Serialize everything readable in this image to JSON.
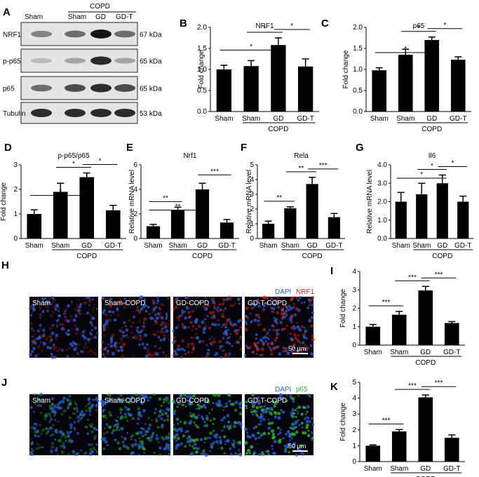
{
  "figure": {
    "panel_letters": [
      "A",
      "B",
      "C",
      "D",
      "E",
      "F",
      "G",
      "H",
      "I",
      "J",
      "K"
    ],
    "western_blot": {
      "header_group": "COPD",
      "lane_labels": [
        "Sham",
        "Sham",
        "GD",
        "GD-T"
      ],
      "rows": [
        {
          "protein": "NRF1",
          "size": "67 kDa",
          "intensities": [
            0.45,
            0.55,
            0.95,
            0.55
          ]
        },
        {
          "protein": "p-p65",
          "size": "65 kDa",
          "intensities": [
            0.2,
            0.3,
            0.85,
            0.3
          ]
        },
        {
          "protein": "p65",
          "size": "65 kDa",
          "intensities": [
            0.55,
            0.7,
            0.85,
            0.7
          ]
        },
        {
          "protein": "Tubulin",
          "size": "53 kDa",
          "intensities": [
            0.85,
            0.85,
            0.85,
            0.85
          ]
        }
      ]
    },
    "microscopy": {
      "H": {
        "stains": [
          "DAPI",
          "NRF1"
        ],
        "stain_colors": [
          "#2a5bd7",
          "#d6271f"
        ],
        "panels": [
          "Sham",
          "Sham-COPD",
          "GD-COPD",
          "GD-T-COPD"
        ],
        "scale_bar": "50 μm"
      },
      "J": {
        "stains": [
          "DAPI",
          "p65"
        ],
        "stain_colors": [
          "#2a5bd7",
          "#2fb52f"
        ],
        "panels": [
          "Sham",
          "Sham-COPD",
          "GD-COPD",
          "GD-T-COPD"
        ],
        "scale_bar": "50 μm"
      }
    }
  },
  "chart_data": [
    {
      "id": "B",
      "type": "bar",
      "title": "NRF1",
      "ylabel": "Fold change",
      "ylim": [
        0,
        2.0
      ],
      "yticks": [
        "0.0",
        "0.5",
        "1.0",
        "1.5",
        "2.0"
      ],
      "categories": [
        "Sham",
        "Sham",
        "GD",
        "GD-T"
      ],
      "group_label": "COPD",
      "values": [
        1.0,
        1.08,
        1.58,
        1.07
      ],
      "errors": [
        0.1,
        0.13,
        0.17,
        0.18
      ],
      "sig": [
        {
          "from": 0,
          "to": 2,
          "label": "*"
        },
        {
          "from": 1,
          "to": 2,
          "label": "*"
        },
        {
          "from": 2,
          "to": 3,
          "label": "*"
        }
      ]
    },
    {
      "id": "C",
      "type": "bar",
      "title": "p65",
      "ylabel": "Fold change",
      "ylim": [
        0,
        2.0
      ],
      "yticks": [
        "0.0",
        "0.5",
        "1.0",
        "1.5",
        "2.0"
      ],
      "categories": [
        "Sham",
        "Sham",
        "GD",
        "GD-T"
      ],
      "group_label": "COPD",
      "values": [
        0.98,
        1.35,
        1.7,
        1.23
      ],
      "errors": [
        0.06,
        0.13,
        0.07,
        0.07
      ],
      "sig": [
        {
          "from": 0,
          "to": 2,
          "label": "*"
        },
        {
          "from": 1,
          "to": 2,
          "label": "*"
        },
        {
          "from": 2,
          "to": 3,
          "label": "*"
        }
      ]
    },
    {
      "id": "D",
      "type": "bar",
      "title": "p-p65/p65",
      "ylabel": "Fold change",
      "ylim": [
        0,
        3
      ],
      "yticks": [
        "0",
        "1",
        "2",
        "3"
      ],
      "categories": [
        "Sham",
        "Sham",
        "GD",
        "GD-T"
      ],
      "group_label": "COPD",
      "values": [
        1.0,
        1.9,
        2.5,
        1.15
      ],
      "errors": [
        0.17,
        0.35,
        0.17,
        0.2
      ],
      "sig": [
        {
          "from": 0,
          "to": 2,
          "label": "*"
        },
        {
          "from": 1,
          "to": 2,
          "label": "*"
        },
        {
          "from": 2,
          "to": 3,
          "label": "*"
        }
      ]
    },
    {
      "id": "E",
      "type": "bar",
      "title": "Nrf1",
      "ylabel": "Relative mRNA level",
      "ylim": [
        0,
        6
      ],
      "yticks": [
        "0",
        "2",
        "4",
        "6"
      ],
      "categories": [
        "Sham",
        "Sham",
        "GD",
        "GD-T"
      ],
      "group_label": "COPD",
      "values": [
        1.0,
        2.3,
        4.0,
        1.3
      ],
      "errors": [
        0.15,
        0.25,
        0.5,
        0.25
      ],
      "sig": [
        {
          "from": 0,
          "to": 1,
          "label": "**"
        },
        {
          "from": 0,
          "to": 2,
          "label": "**"
        },
        {
          "from": 2,
          "to": 3,
          "label": "***"
        }
      ]
    },
    {
      "id": "F",
      "type": "bar",
      "title": "Rela",
      "ylabel": "Relative mRNA level",
      "ylim": [
        0,
        5
      ],
      "yticks": [
        "0",
        "1",
        "2",
        "3",
        "4",
        "5"
      ],
      "categories": [
        "Sham",
        "Sham",
        "GD",
        "GD-T"
      ],
      "group_label": "COPD",
      "values": [
        1.0,
        2.05,
        3.7,
        1.45
      ],
      "errors": [
        0.18,
        0.1,
        0.45,
        0.25
      ],
      "sig": [
        {
          "from": 0,
          "to": 1,
          "label": "**"
        },
        {
          "from": 1,
          "to": 2,
          "label": "**"
        },
        {
          "from": 2,
          "to": 3,
          "label": "***"
        }
      ]
    },
    {
      "id": "G",
      "type": "bar",
      "title": "Il6",
      "ylabel": "Relative mRNA level",
      "ylim": [
        0,
        4.0
      ],
      "yticks": [
        "0.0",
        "1.0",
        "2.0",
        "3.0",
        "4.0"
      ],
      "categories": [
        "Sham",
        "Sham",
        "GD",
        "GD-T"
      ],
      "group_label": "COPD",
      "values": [
        2.0,
        2.4,
        3.0,
        2.0
      ],
      "errors": [
        0.5,
        0.6,
        0.45,
        0.3
      ],
      "sig": [
        {
          "from": 0,
          "to": 2,
          "label": "*"
        },
        {
          "from": 1,
          "to": 2,
          "label": "*"
        },
        {
          "from": 2,
          "to": 3,
          "label": "*"
        }
      ]
    },
    {
      "id": "I",
      "type": "bar",
      "title": "",
      "ylabel": "Fold change",
      "ylim": [
        0,
        4
      ],
      "yticks": [
        "0",
        "1",
        "2",
        "3",
        "4"
      ],
      "categories": [
        "Sham",
        "Sham",
        "GD",
        "GD-T"
      ],
      "group_label": "COPD",
      "values": [
        1.0,
        1.65,
        2.97,
        1.2
      ],
      "errors": [
        0.12,
        0.18,
        0.22,
        0.08
      ],
      "sig": [
        {
          "from": 0,
          "to": 1,
          "label": "***"
        },
        {
          "from": 1,
          "to": 2,
          "label": "***"
        },
        {
          "from": 2,
          "to": 3,
          "label": "***"
        }
      ]
    },
    {
      "id": "K",
      "type": "bar",
      "title": "",
      "ylabel": "Fold change",
      "ylim": [
        0,
        5
      ],
      "yticks": [
        "0",
        "1",
        "2",
        "3",
        "4",
        "5"
      ],
      "categories": [
        "Sham",
        "Sham",
        "GD",
        "GD-T"
      ],
      "group_label": "COPD",
      "values": [
        1.0,
        1.9,
        4.05,
        1.5
      ],
      "errors": [
        0.05,
        0.12,
        0.15,
        0.18
      ],
      "sig": [
        {
          "from": 0,
          "to": 1,
          "label": "***"
        },
        {
          "from": 1,
          "to": 2,
          "label": "***"
        },
        {
          "from": 2,
          "to": 3,
          "label": "***"
        }
      ]
    }
  ]
}
